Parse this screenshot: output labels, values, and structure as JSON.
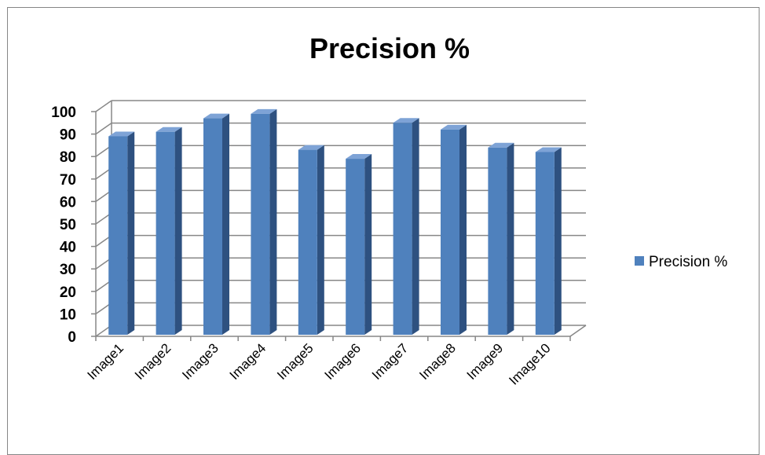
{
  "chart_data": {
    "type": "bar",
    "title": "Precision %",
    "xlabel": "",
    "ylabel": "",
    "categories": [
      "Image1",
      "Image2",
      "Image3",
      "Image4",
      "Image5",
      "Image6",
      "Image7",
      "Image8",
      "Image9",
      "Image10"
    ],
    "series": [
      {
        "name": "Precision %",
        "values": [
          89,
          91,
          97,
          99,
          83,
          79,
          95,
          92,
          84,
          82
        ]
      }
    ],
    "ylim": [
      0,
      100
    ],
    "yticks": [
      0,
      10,
      20,
      30,
      40,
      50,
      60,
      70,
      80,
      90,
      100
    ],
    "grid": true,
    "legend_position": "right",
    "style": "3d-column",
    "colors": {
      "bar_front": "#4f81bd",
      "bar_side": "#2e5180",
      "bar_top": "#7ea3d6",
      "grid": "#878787"
    }
  }
}
